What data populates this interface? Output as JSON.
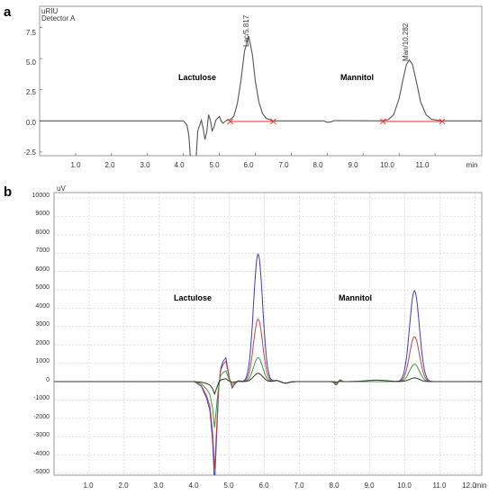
{
  "panels": {
    "a": {
      "letter": "a",
      "detector": "Detector A",
      "ylabel": "uRIU",
      "xunit": "min",
      "xticks": [
        "1.0",
        "2.0",
        "3.0",
        "4.0",
        "5.0",
        "6.0",
        "7.0",
        "8.0",
        "9.0",
        "10.0",
        "11.0"
      ],
      "yticks": [
        "7.5",
        "5.0",
        "2.5",
        "0.0",
        "-2.5"
      ],
      "peak_labels": [
        "Lac/5.817",
        "Man/10.282"
      ],
      "annotations": [
        "Lactulose",
        "Mannitol"
      ]
    },
    "b": {
      "letter": "b",
      "ylabel": "uV",
      "xunit": "min",
      "xticks": [
        "1.0",
        "2.0",
        "3.0",
        "4.0",
        "5.0",
        "6.0",
        "7.0",
        "8.0",
        "9.0",
        "10.0",
        "11.0",
        "12.0"
      ],
      "yticks": [
        "10000",
        "9000",
        "8000",
        "7000",
        "6000",
        "5000",
        "4000",
        "3000",
        "2000",
        "1000",
        "0",
        "-1000",
        "-2000",
        "-3000",
        "-4000",
        "-5000"
      ],
      "annotations": [
        "Lactulose",
        "Mannitol"
      ]
    }
  },
  "chart_data": [
    {
      "type": "line",
      "xlim": [
        0,
        12.3
      ],
      "ylim": [
        -2.8,
        9.2
      ],
      "xticks": [
        1,
        2,
        3,
        4,
        5,
        6,
        7,
        8,
        9,
        10,
        11
      ],
      "yticks": [
        7.5,
        5.0,
        2.5,
        0.0,
        -2.5
      ],
      "xlabel": "min",
      "ylabel": "uRIU",
      "color": "#555555",
      "baseline_color": "#ff2a2a",
      "peaks": [
        {
          "label": "Lac/5.817",
          "x": 5.817,
          "y": 6.8,
          "start": 5.3,
          "end": 6.5
        },
        {
          "label": "Man/10.282",
          "x": 10.282,
          "y": 4.9,
          "start": 9.55,
          "end": 11.2
        }
      ],
      "trace": [
        [
          0,
          0
        ],
        [
          4.0,
          0
        ],
        [
          4.1,
          -0.35
        ],
        [
          4.15,
          -1.2
        ],
        [
          4.2,
          -3.2
        ],
        [
          4.35,
          -3.2
        ],
        [
          4.4,
          -0.8
        ],
        [
          4.5,
          0.05
        ],
        [
          4.55,
          -0.6
        ],
        [
          4.6,
          -1.5
        ],
        [
          4.65,
          -0.9
        ],
        [
          4.7,
          0.5
        ],
        [
          4.75,
          0.05
        ],
        [
          4.8,
          -0.8
        ],
        [
          4.85,
          -0.5
        ],
        [
          4.9,
          0.05
        ],
        [
          5.0,
          0.35
        ],
        [
          5.05,
          0.0
        ],
        [
          5.1,
          -0.2
        ],
        [
          5.2,
          0.05
        ],
        [
          5.3,
          0.1
        ],
        [
          5.4,
          0.35
        ],
        [
          5.5,
          1.4
        ],
        [
          5.6,
          3.2
        ],
        [
          5.7,
          5.6
        ],
        [
          5.817,
          6.8
        ],
        [
          5.92,
          5.3
        ],
        [
          6.0,
          3.2
        ],
        [
          6.1,
          1.5
        ],
        [
          6.2,
          0.6
        ],
        [
          6.3,
          0.2
        ],
        [
          6.5,
          0.0
        ],
        [
          7.5,
          0
        ],
        [
          7.9,
          0
        ],
        [
          8.0,
          -0.12
        ],
        [
          8.1,
          -0.08
        ],
        [
          8.2,
          0.02
        ],
        [
          9.5,
          0
        ],
        [
          9.7,
          0.1
        ],
        [
          9.85,
          0.5
        ],
        [
          10.0,
          1.8
        ],
        [
          10.1,
          3.2
        ],
        [
          10.2,
          4.5
        ],
        [
          10.282,
          4.9
        ],
        [
          10.37,
          4.55
        ],
        [
          10.5,
          2.9
        ],
        [
          10.6,
          1.5
        ],
        [
          10.75,
          0.5
        ],
        [
          10.9,
          0.12
        ],
        [
          11.2,
          0
        ],
        [
          12.3,
          0
        ]
      ]
    },
    {
      "type": "line",
      "xlim": [
        0,
        12.2
      ],
      "ylim": [
        -5100,
        10300
      ],
      "xticks": [
        1,
        2,
        3,
        4,
        5,
        6,
        7,
        8,
        9,
        10,
        11,
        12
      ],
      "yticks": [
        10000,
        9000,
        8000,
        7000,
        6000,
        5000,
        4000,
        3000,
        2000,
        1000,
        0,
        -1000,
        -2000,
        -3000,
        -4000,
        -5000
      ],
      "xlabel": "min",
      "ylabel": "uV",
      "series": [
        {
          "color": "#3b3bcc",
          "lac_height": 6950,
          "man_height": 4950,
          "dip_scale": 1.0
        },
        {
          "color": "#c24545",
          "lac_height": 3400,
          "man_height": 2450,
          "dip_scale": 0.85
        },
        {
          "color": "#3e9a3e",
          "lac_height": 1300,
          "man_height": 950,
          "dip_scale": 0.45
        },
        {
          "color": "#333333",
          "lac_height": 450,
          "man_height": 200,
          "dip_scale": 0.12
        }
      ]
    }
  ]
}
